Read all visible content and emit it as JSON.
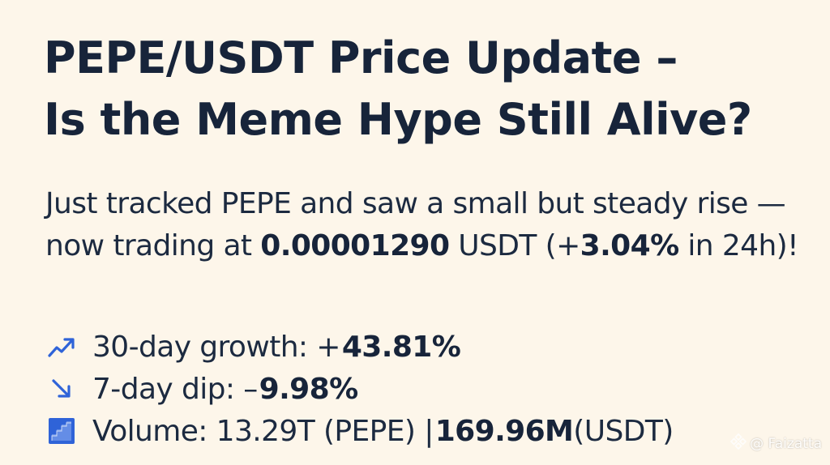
{
  "title": {
    "line1": "PEPE/USDT Price Update –",
    "line2": "Is the Meme Hype Still Alive?"
  },
  "intro": {
    "text_before": "Just tracked PEPE and saw a small but steady rise — now trading at ",
    "price": "0.00001290",
    "text_after_price": " USDT (+",
    "change_24h": "3.04%",
    "text_end": " in 24h)!"
  },
  "stats": {
    "growth": {
      "icon": "trend-up-icon",
      "label": "30-day growth: +",
      "value": "43.81%"
    },
    "dip": {
      "icon": "arrow-down-right-icon",
      "label": "7-day dip: –",
      "value": "9.98%"
    },
    "volume": {
      "icon": "bar-steps-icon",
      "label": "Volume: 13.29T (PEPE) | ",
      "value": "169.96M",
      "suffix": " (USDT)"
    }
  },
  "watermark": {
    "icon": "binance-logo-icon",
    "text": "@ Faizatta"
  },
  "colors": {
    "background": "#fdf6ea",
    "text": "#17243a",
    "accent_blue": "#2f63d8"
  }
}
